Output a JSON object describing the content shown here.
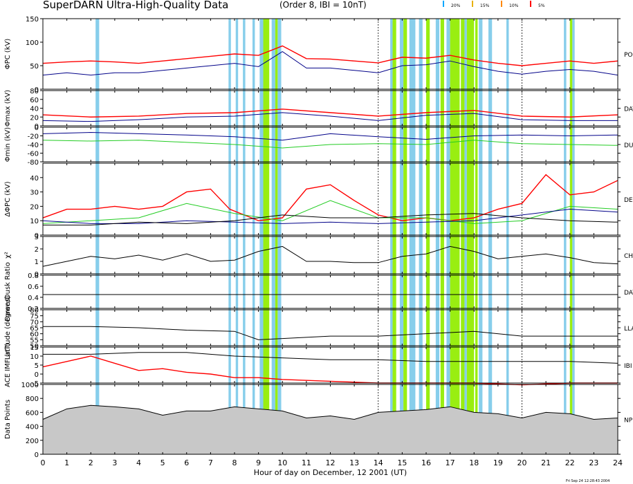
{
  "header": {
    "title": "SuperDARN Ultra-High-Quality Data",
    "subtitle": "(Order 8, IBI = 10nT)",
    "legend": [
      {
        "label": "20%",
        "color": "#00a6ff"
      },
      {
        "label": "15%",
        "color": "#e8b000"
      },
      {
        "label": "10%",
        "color": "#ff8800"
      },
      {
        "label": "5%",
        "color": "#ff0000"
      }
    ]
  },
  "footer": {
    "stamp": "Fri Sep 24 12:28:43 2004"
  },
  "colors": {
    "blue_band": "#87ceeb",
    "green_band": "#99ee11",
    "red": "#ff0000",
    "orange": "#ff8800",
    "green": "#22cc22",
    "navy": "#000088",
    "black": "#000000"
  },
  "chart_data": [
    {
      "type": "line",
      "panel": "phi_pc",
      "ylabel": "ΦPC (kV)",
      "right_label": "PO",
      "ylim": [
        0,
        150
      ],
      "yticks": [
        0,
        50,
        100,
        150
      ],
      "xlabel": "",
      "xlim": [
        0,
        24
      ],
      "series": [
        {
          "color": "red",
          "x": [
            0,
            1,
            2,
            3,
            4,
            5,
            6,
            7,
            8,
            9,
            10,
            11,
            12,
            13,
            14,
            15,
            16,
            17,
            18,
            19,
            20,
            21,
            22,
            23,
            24
          ],
          "values": [
            55,
            58,
            60,
            58,
            55,
            60,
            65,
            70,
            75,
            72,
            92,
            65,
            64,
            60,
            56,
            68,
            66,
            72,
            62,
            55,
            50,
            55,
            60,
            55,
            60
          ]
        },
        {
          "color": "navy",
          "x": [
            0,
            1,
            2,
            3,
            4,
            5,
            6,
            7,
            8,
            9,
            10,
            11,
            12,
            13,
            14,
            15,
            16,
            17,
            18,
            19,
            20,
            21,
            22,
            23,
            24
          ],
          "values": [
            30,
            35,
            30,
            35,
            35,
            40,
            45,
            50,
            55,
            48,
            80,
            45,
            45,
            40,
            35,
            50,
            52,
            60,
            48,
            38,
            32,
            38,
            42,
            38,
            30
          ]
        }
      ]
    },
    {
      "type": "line",
      "panel": "phi_max",
      "ylabel": "Φmax (kV)",
      "right_label": "DAY",
      "ylim": [
        0,
        80
      ],
      "yticks": [
        0,
        20,
        40,
        60,
        80
      ],
      "xlim": [
        0,
        24
      ],
      "series": [
        {
          "color": "red",
          "x": [
            0,
            2,
            4,
            6,
            8,
            10,
            12,
            14,
            16,
            18,
            20,
            22,
            24
          ],
          "values": [
            25,
            20,
            22,
            28,
            30,
            38,
            30,
            22,
            30,
            35,
            22,
            20,
            25
          ]
        },
        {
          "color": "navy",
          "x": [
            0,
            2,
            4,
            6,
            8,
            10,
            12,
            14,
            16,
            18,
            20,
            22,
            24
          ],
          "values": [
            12,
            10,
            14,
            20,
            22,
            30,
            22,
            12,
            24,
            28,
            14,
            12,
            12
          ]
        }
      ]
    },
    {
      "type": "line",
      "panel": "phi_min",
      "ylabel": "Φmin (kV)",
      "right_label": "DU",
      "ylim": [
        -80,
        0
      ],
      "yticks": [
        -80,
        -60,
        -40,
        -20,
        0
      ],
      "xlim": [
        0,
        24
      ],
      "series": [
        {
          "color": "green",
          "x": [
            0,
            2,
            4,
            6,
            8,
            10,
            12,
            14,
            16,
            18,
            20,
            22,
            24
          ],
          "values": [
            -30,
            -32,
            -30,
            -35,
            -40,
            -48,
            -40,
            -38,
            -40,
            -30,
            -38,
            -40,
            -42
          ]
        },
        {
          "color": "navy",
          "x": [
            0,
            2,
            4,
            6,
            8,
            10,
            12,
            14,
            16,
            18,
            20,
            22,
            24
          ],
          "values": [
            -15,
            -12,
            -15,
            -18,
            -22,
            -30,
            -15,
            -22,
            -28,
            -20,
            -18,
            -20,
            -18
          ]
        }
      ]
    },
    {
      "type": "line",
      "panel": "delta_phi",
      "ylabel": "ΔΦPC (kV)",
      "right_label": "DE",
      "ylim": [
        0,
        50
      ],
      "yticks": [
        0,
        10,
        20,
        30,
        40
      ],
      "xlim": [
        0,
        24
      ],
      "series": [
        {
          "color": "red",
          "x": [
            0,
            1,
            2,
            3,
            4,
            5,
            6,
            7,
            7.8,
            9,
            10,
            11,
            12,
            13,
            14,
            15,
            16,
            17,
            18,
            19,
            20,
            21,
            22,
            23,
            24
          ],
          "values": [
            12,
            18,
            18,
            20,
            18,
            20,
            30,
            32,
            18,
            10,
            12,
            32,
            35,
            24,
            14,
            10,
            12,
            10,
            12,
            18,
            22,
            42,
            28,
            30,
            38
          ]
        },
        {
          "color": "green",
          "x": [
            0,
            2,
            4,
            6,
            8,
            10,
            12,
            14,
            16,
            18,
            20,
            22,
            24
          ],
          "values": [
            8,
            10,
            12,
            22,
            15,
            10,
            24,
            12,
            12,
            8,
            10,
            20,
            18
          ]
        },
        {
          "color": "navy",
          "x": [
            0,
            2,
            4,
            6,
            8,
            10,
            12,
            14,
            16,
            18,
            20,
            22,
            24
          ],
          "values": [
            10,
            8,
            8,
            10,
            9,
            8,
            9,
            8,
            9,
            10,
            14,
            18,
            16
          ]
        },
        {
          "color": "black",
          "x": [
            0,
            2,
            4,
            6,
            8,
            10,
            12,
            14,
            16,
            18,
            20,
            22,
            24
          ],
          "values": [
            7,
            7,
            9,
            8,
            10,
            14,
            12,
            12,
            14,
            15,
            12,
            10,
            9
          ]
        }
      ]
    },
    {
      "type": "line",
      "panel": "chi2",
      "ylabel": "χ²",
      "right_label": "CH",
      "ylim": [
        0,
        3
      ],
      "yticks": [
        0,
        1,
        2,
        3
      ],
      "xlim": [
        0,
        24
      ],
      "series": [
        {
          "color": "black",
          "x": [
            0,
            1,
            2,
            3,
            4,
            5,
            6,
            7,
            8,
            9,
            10,
            11,
            12,
            13,
            14,
            15,
            16,
            17,
            18,
            19,
            20,
            21,
            22,
            23,
            24
          ],
          "values": [
            0.6,
            1.0,
            1.4,
            1.2,
            1.5,
            1.1,
            1.6,
            1.0,
            1.1,
            1.8,
            2.2,
            1.0,
            1.0,
            0.9,
            0.9,
            1.4,
            1.6,
            2.2,
            1.8,
            1.2,
            1.4,
            1.6,
            1.3,
            0.9,
            0.8
          ]
        }
      ]
    },
    {
      "type": "line",
      "panel": "dawn_dusk",
      "ylabel": "Dawn/Dusk Ratio",
      "right_label": "DAY",
      "ylim": [
        0.2,
        0.8
      ],
      "yticks": [
        0.2,
        0.4,
        0.6,
        0.8
      ],
      "xlim": [
        0,
        24
      ],
      "series": [
        {
          "color": "black",
          "x": [
            0,
            4,
            8,
            12,
            16,
            20,
            24
          ],
          "values": [
            0.45,
            0.45,
            0.45,
            0.45,
            0.45,
            0.45,
            0.45
          ]
        }
      ]
    },
    {
      "type": "line",
      "panel": "latitude",
      "ylabel": "Latitude (degrees)",
      "right_label": "LLA",
      "ylim": [
        50,
        80
      ],
      "yticks": [
        50,
        55,
        60,
        65,
        70,
        75,
        80
      ],
      "xlim": [
        0,
        24
      ],
      "series": [
        {
          "color": "black",
          "x": [
            0,
            2,
            4,
            6,
            8,
            9,
            10,
            12,
            14,
            16,
            18,
            20,
            22,
            24
          ],
          "values": [
            66,
            66,
            65,
            63,
            62,
            55,
            56,
            58,
            58,
            60,
            62,
            58,
            58,
            58
          ]
        }
      ]
    },
    {
      "type": "line",
      "panel": "imf",
      "ylabel": "ACE IMF (nT)",
      "right_label": "IBI",
      "ylim": [
        -5,
        15
      ],
      "yticks": [
        -5,
        0,
        5,
        10,
        15
      ],
      "xlim": [
        0,
        24
      ],
      "series": [
        {
          "color": "red",
          "x": [
            0,
            1,
            2,
            3,
            4,
            5,
            6,
            7,
            8,
            9,
            10,
            12,
            14,
            16,
            18,
            20,
            22,
            24
          ],
          "values": [
            4,
            7,
            10,
            6,
            2,
            3,
            1,
            0,
            -2,
            -2,
            -3,
            -4,
            -5,
            -5,
            -5,
            -6,
            -5,
            -5
          ]
        },
        {
          "color": "black",
          "x": [
            0,
            2,
            4,
            6,
            8,
            10,
            12,
            14,
            16,
            18,
            20,
            22,
            24
          ],
          "values": [
            11,
            11,
            12,
            12,
            10,
            9,
            8,
            8,
            7,
            7,
            7,
            7,
            6
          ]
        }
      ]
    },
    {
      "type": "area",
      "panel": "data_points",
      "ylabel": "Data Points",
      "right_label": "NP",
      "ylim": [
        0,
        1000
      ],
      "yticks": [
        0,
        200,
        400,
        600,
        800,
        1000
      ],
      "xlim": [
        0,
        24
      ],
      "xticks": [
        0,
        1,
        2,
        3,
        4,
        5,
        6,
        7,
        8,
        9,
        10,
        11,
        12,
        13,
        14,
        15,
        16,
        17,
        18,
        19,
        20,
        21,
        22,
        23,
        24
      ],
      "xlabel": "Hour of day on December, 12 2001 (UT)",
      "series": [
        {
          "color": "black",
          "x": [
            0,
            1,
            2,
            3,
            4,
            5,
            6,
            7,
            8,
            9,
            10,
            11,
            12,
            13,
            14,
            15,
            16,
            17,
            18,
            19,
            20,
            21,
            22,
            23,
            24
          ],
          "values": [
            500,
            650,
            700,
            680,
            650,
            560,
            620,
            620,
            680,
            650,
            620,
            520,
            550,
            500,
            600,
            620,
            640,
            680,
            600,
            580,
            520,
            600,
            580,
            500,
            520
          ]
        }
      ]
    }
  ]
}
